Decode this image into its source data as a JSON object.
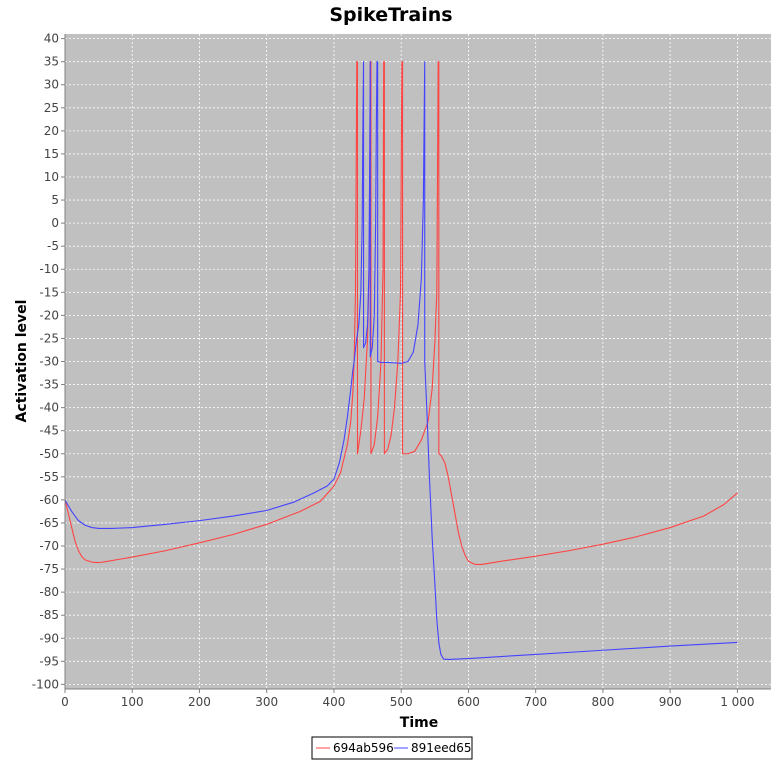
{
  "chart_data": {
    "type": "line",
    "title": "SpikeTrains",
    "xlabel": "Time",
    "ylabel": "Activation level",
    "xlim": [
      0,
      1050
    ],
    "ylim": [
      -101,
      41
    ],
    "x_ticks": [
      0,
      100,
      200,
      300,
      400,
      500,
      600,
      700,
      800,
      900,
      1000
    ],
    "x_tick_labels": [
      "0",
      "100",
      "200",
      "300",
      "400",
      "500",
      "600",
      "700",
      "800",
      "900",
      "1 000"
    ],
    "y_ticks": [
      40,
      35,
      30,
      25,
      20,
      15,
      10,
      5,
      0,
      -5,
      -10,
      -15,
      -20,
      -25,
      -30,
      -35,
      -40,
      -45,
      -50,
      -55,
      -60,
      -65,
      -70,
      -75,
      -80,
      -85,
      -90,
      -95,
      -100
    ],
    "grid": true,
    "legend_position": "bottom-center",
    "plot_background": "#c0c0c0",
    "series": [
      {
        "name": "694ab596",
        "color": "#ff4444",
        "points": [
          [
            0,
            -60
          ],
          [
            5,
            -63
          ],
          [
            10,
            -66
          ],
          [
            15,
            -69
          ],
          [
            20,
            -71
          ],
          [
            25,
            -72.3
          ],
          [
            30,
            -73
          ],
          [
            40,
            -73.5
          ],
          [
            50,
            -73.6
          ],
          [
            60,
            -73.4
          ],
          [
            80,
            -72.9
          ],
          [
            100,
            -72.4
          ],
          [
            150,
            -71
          ],
          [
            200,
            -69.3
          ],
          [
            250,
            -67.5
          ],
          [
            300,
            -65.3
          ],
          [
            350,
            -62.5
          ],
          [
            380,
            -60.3
          ],
          [
            400,
            -57
          ],
          [
            410,
            -54
          ],
          [
            415,
            -51
          ],
          [
            420,
            -48
          ],
          [
            425,
            -43
          ],
          [
            428,
            -37
          ],
          [
            430,
            -30
          ],
          [
            432,
            -15
          ],
          [
            433,
            10
          ],
          [
            434,
            35
          ],
          [
            435,
            35
          ],
          [
            435,
            -50
          ],
          [
            440,
            -45
          ],
          [
            445,
            -38
          ],
          [
            450,
            -25
          ],
          [
            453,
            -5
          ],
          [
            454,
            35
          ],
          [
            455,
            35
          ],
          [
            455,
            -50
          ],
          [
            460,
            -48
          ],
          [
            465,
            -42
          ],
          [
            470,
            -30
          ],
          [
            473,
            -10
          ],
          [
            474,
            35
          ],
          [
            475,
            35
          ],
          [
            475,
            -50
          ],
          [
            480,
            -49
          ],
          [
            485,
            -46
          ],
          [
            490,
            -40
          ],
          [
            495,
            -30
          ],
          [
            499,
            -15
          ],
          [
            500,
            10
          ],
          [
            501,
            35
          ],
          [
            502,
            35
          ],
          [
            502,
            -50
          ],
          [
            510,
            -50
          ],
          [
            520,
            -49.5
          ],
          [
            530,
            -47
          ],
          [
            540,
            -43
          ],
          [
            546,
            -36
          ],
          [
            550,
            -26
          ],
          [
            553,
            -15
          ],
          [
            555,
            35
          ],
          [
            556,
            35
          ],
          [
            556,
            -50
          ],
          [
            560,
            -50.5
          ],
          [
            565,
            -52
          ],
          [
            570,
            -55
          ],
          [
            575,
            -59
          ],
          [
            580,
            -63
          ],
          [
            585,
            -67
          ],
          [
            590,
            -70
          ],
          [
            595,
            -72
          ],
          [
            600,
            -73.3
          ],
          [
            610,
            -74
          ],
          [
            620,
            -74
          ],
          [
            640,
            -73.5
          ],
          [
            700,
            -72.2
          ],
          [
            750,
            -71
          ],
          [
            800,
            -69.6
          ],
          [
            850,
            -68
          ],
          [
            900,
            -66
          ],
          [
            950,
            -63.5
          ],
          [
            980,
            -61
          ],
          [
            1000,
            -58.5
          ]
        ]
      },
      {
        "name": "891eed65",
        "color": "#4444ff",
        "points": [
          [
            0,
            -60
          ],
          [
            5,
            -61.3
          ],
          [
            10,
            -62.5
          ],
          [
            15,
            -63.5
          ],
          [
            20,
            -64.5
          ],
          [
            30,
            -65.5
          ],
          [
            40,
            -66
          ],
          [
            50,
            -66.2
          ],
          [
            70,
            -66.2
          ],
          [
            100,
            -66
          ],
          [
            150,
            -65.3
          ],
          [
            200,
            -64.5
          ],
          [
            250,
            -63.5
          ],
          [
            300,
            -62.3
          ],
          [
            340,
            -60.5
          ],
          [
            370,
            -58.5
          ],
          [
            390,
            -57
          ],
          [
            400,
            -55.5
          ],
          [
            408,
            -52
          ],
          [
            415,
            -47
          ],
          [
            420,
            -42
          ],
          [
            425,
            -36
          ],
          [
            428,
            -32
          ],
          [
            430,
            -30
          ],
          [
            433,
            -26
          ],
          [
            437,
            -22
          ],
          [
            440,
            -15
          ],
          [
            442,
            0
          ],
          [
            443,
            20
          ],
          [
            444,
            35
          ],
          [
            444,
            -27
          ],
          [
            447,
            -26
          ],
          [
            450,
            -22
          ],
          [
            452,
            -10
          ],
          [
            453,
            10
          ],
          [
            454,
            35
          ],
          [
            454,
            -29
          ],
          [
            457,
            -27
          ],
          [
            460,
            -20
          ],
          [
            462,
            0
          ],
          [
            463,
            20
          ],
          [
            464,
            35
          ],
          [
            465,
            35
          ],
          [
            465,
            -30
          ],
          [
            470,
            -30.2
          ],
          [
            480,
            -30.2
          ],
          [
            490,
            -30.3
          ],
          [
            500,
            -30.4
          ],
          [
            510,
            -30
          ],
          [
            518,
            -28
          ],
          [
            525,
            -22
          ],
          [
            530,
            -12
          ],
          [
            533,
            5
          ],
          [
            535,
            35
          ],
          [
            535,
            -30
          ],
          [
            538,
            -40
          ],
          [
            542,
            -55
          ],
          [
            546,
            -68
          ],
          [
            550,
            -78
          ],
          [
            553,
            -86
          ],
          [
            556,
            -91
          ],
          [
            559,
            -93.5
          ],
          [
            563,
            -94.5
          ],
          [
            570,
            -94.6
          ],
          [
            600,
            -94.4
          ],
          [
            700,
            -93.5
          ],
          [
            800,
            -92.6
          ],
          [
            900,
            -91.7
          ],
          [
            1000,
            -90.9
          ]
        ]
      }
    ]
  }
}
